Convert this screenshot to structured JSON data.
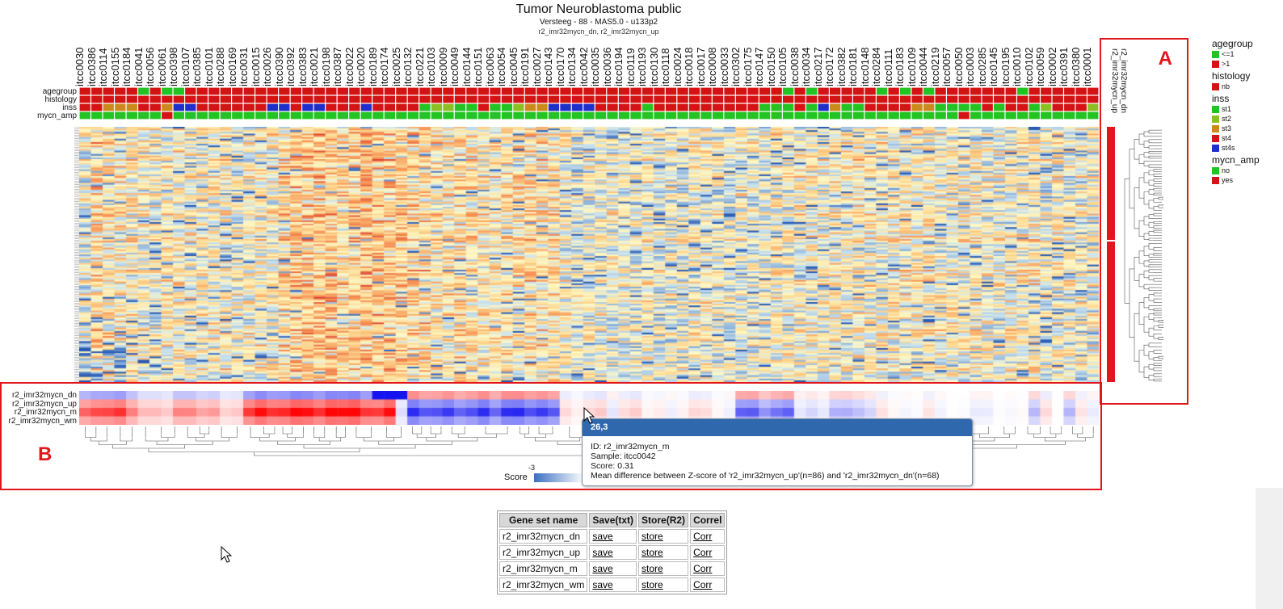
{
  "header": {
    "title": "Tumor Neuroblastoma public",
    "subtitle": "Versteeg - 88 - MAS5.0 - u133p2",
    "geneset_line": "r2_imr32mycn_dn, r2_imr32mycn_up"
  },
  "samples": [
    "itcc0030",
    "itcc0386",
    "itcc0114",
    "itcc0155",
    "itcc0184",
    "itcc0041",
    "itcc0056",
    "itcc0061",
    "itcc0398",
    "itcc0107",
    "itcc0385",
    "itcc0101",
    "itcc0288",
    "itcc0169",
    "itcc0031",
    "itcc0015",
    "itcc0026",
    "itcc0390",
    "itcc0392",
    "itcc0383",
    "itcc0021",
    "itcc0198",
    "itcc0387",
    "itcc0022",
    "itcc0020",
    "itcc0189",
    "itcc0174",
    "itcc0025",
    "itcc0132",
    "itcc0221",
    "itcc0103",
    "itcc0009",
    "itcc0049",
    "itcc0144",
    "itcc0151",
    "itcc0063",
    "itcc0054",
    "itcc0045",
    "itcc0191",
    "itcc0027",
    "itcc0143",
    "itcc0170",
    "itcc0134",
    "itcc0042",
    "itcc0035",
    "itcc0036",
    "itcc0194",
    "itcc0119",
    "itcc0193",
    "itcc0130",
    "itcc0118",
    "itcc0024",
    "itcc0018",
    "itcc0017",
    "itcc0008",
    "itcc0033",
    "itcc0302",
    "itcc0175",
    "itcc0147",
    "itcc0150",
    "itcc0105",
    "itcc0038",
    "itcc0034",
    "itcc0217",
    "itcc0172",
    "itcc0382",
    "itcc0181",
    "itcc0148",
    "itcc0284",
    "itcc0111",
    "itcc0183",
    "itcc0109",
    "itcc0044",
    "itcc0219",
    "itcc0057",
    "itcc0050",
    "itcc0003",
    "itcc0285",
    "itcc0145",
    "itcc0195",
    "itcc0010",
    "itcc0102",
    "itcc0059",
    "itcc0002",
    "itcc0391",
    "itcc0380",
    "itcc0001"
  ],
  "annotation_rows": [
    {
      "name": "agegroup",
      "values": "11111010011111111111111111111111111111111111111111111111111101011111010101111111011111101"
    },
    {
      "name": "histology",
      "values": "11111111111111111111111111111111111111111111111111111111111111111111111111111111111111111"
    },
    {
      "name": "inss",
      "values": "33222332443333334434433343333011003001224444333303333333330003042003333220000303301333141"
    },
    {
      "name": "mycn_amp",
      "values": "00000001000000000000000000000000000000000000000000000000000000000000000000010000000000000"
    }
  ],
  "legend": [
    {
      "title": "agegroup",
      "items": [
        {
          "label": "<=1",
          "color": "#22c322"
        },
        {
          "label": ">1",
          "color": "#d41414"
        }
      ]
    },
    {
      "title": "histology",
      "items": [
        {
          "label": "nb",
          "color": "#d41414"
        }
      ]
    },
    {
      "title": "inss",
      "items": [
        {
          "label": "st1",
          "color": "#22c322"
        },
        {
          "label": "st2",
          "color": "#8cbf26"
        },
        {
          "label": "st3",
          "color": "#cc8a1c"
        },
        {
          "label": "st4",
          "color": "#d41414"
        },
        {
          "label": "st4s",
          "color": "#1f2fcc"
        }
      ]
    },
    {
      "title": "mycn_amp",
      "items": [
        {
          "label": "no",
          "color": "#22c322"
        },
        {
          "label": "yes",
          "color": "#d41414"
        }
      ]
    }
  ],
  "row_groups": [
    "r2_imr32mycn_dn",
    "r2_imr32mycn_up"
  ],
  "score_rows": [
    "r2_imr32mycn_dn",
    "r2_imr32mycn_up",
    "r2_imr32mycn_m",
    "r2_imr32mycn_wm"
  ],
  "score_legend": {
    "label": "Score",
    "min": "-3"
  },
  "callouts": {
    "a": "A",
    "b": "B"
  },
  "tooltip": {
    "header": "26,3",
    "id_line": "ID: r2_imr32mycn_m",
    "sample_line": "Sample: itcc0042",
    "score_line": "Score: 0.31",
    "desc_line": "Mean difference between Z-score of 'r2_imr32mycn_up'(n=86) and 'r2_imr32mycn_dn'(n=68)"
  },
  "table": {
    "headers": [
      "Gene set name",
      "Save(txt)",
      "Store(R2)",
      "Correl"
    ],
    "rows": [
      {
        "name": "r2_imr32mycn_dn",
        "save": "save",
        "store": "store",
        "corr": "Corr"
      },
      {
        "name": "r2_imr32mycn_up",
        "save": "save",
        "store": "store",
        "corr": "Corr"
      },
      {
        "name": "r2_imr32mycn_m",
        "save": "save",
        "store": "store",
        "corr": "Corr"
      },
      {
        "name": "r2_imr32mycn_wm",
        "save": "save",
        "store": "store",
        "corr": "Corr"
      }
    ]
  },
  "colors": {
    "accent": "#e2171d",
    "tooltip_header": "#2f68ad"
  }
}
